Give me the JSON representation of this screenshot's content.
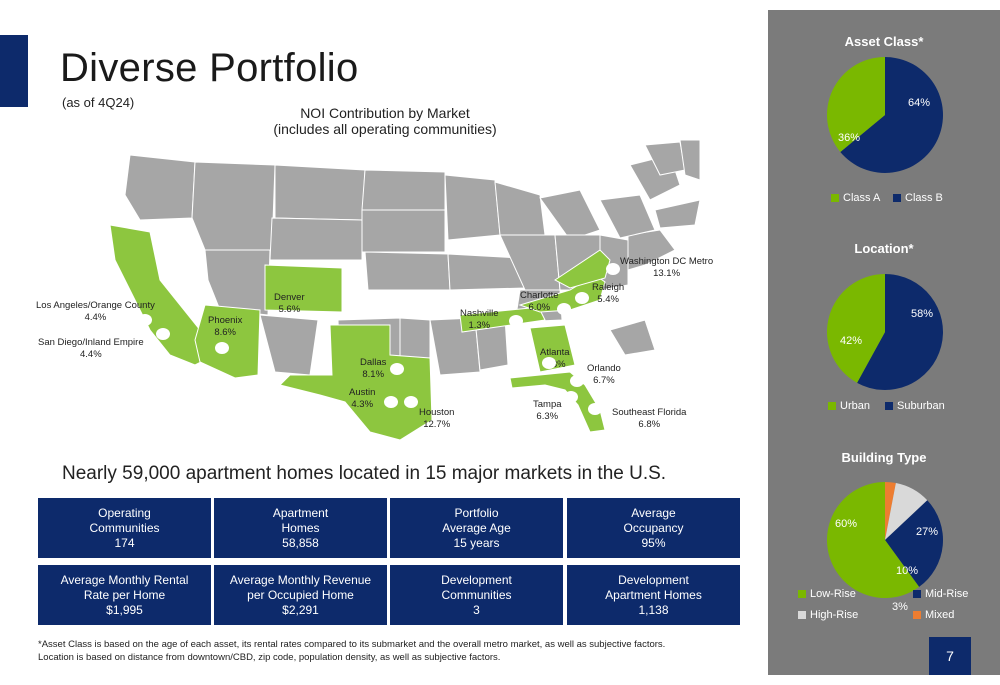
{
  "header": {
    "title": "Diverse Portfolio",
    "subtitle": "(as of 4Q24)"
  },
  "map": {
    "title_line1": "NOI Contribution by Market",
    "title_line2": "(includes all operating communities)",
    "colors": {
      "highlight": "#8dc63f",
      "base": "#a6a6a6",
      "border": "#ffffff"
    },
    "markets": [
      {
        "name": "Los Angeles/Orange County",
        "value": "4.4%"
      },
      {
        "name": "San Diego/Inland Empire",
        "value": "4.4%"
      },
      {
        "name": "Phoenix",
        "value": "8.6%"
      },
      {
        "name": "Denver",
        "value": "5.6%"
      },
      {
        "name": "Dallas",
        "value": "8.1%"
      },
      {
        "name": "Austin",
        "value": "4.3%"
      },
      {
        "name": "Houston",
        "value": "12.7%"
      },
      {
        "name": "Nashville",
        "value": "1.3%"
      },
      {
        "name": "Atlanta",
        "value": "6.3%"
      },
      {
        "name": "Charlotte",
        "value": "6.0%"
      },
      {
        "name": "Raleigh",
        "value": "5.4%"
      },
      {
        "name": "Washington DC Metro",
        "value": "13.1%"
      },
      {
        "name": "Orlando",
        "value": "6.7%"
      },
      {
        "name": "Tampa",
        "value": "6.3%"
      },
      {
        "name": "Southeast Florida",
        "value": "6.8%"
      }
    ]
  },
  "headline": "Nearly 59,000 apartment homes located in 15 major markets in the U.S.",
  "stats": [
    {
      "line1": "Operating",
      "line2": "Communities",
      "value": "174"
    },
    {
      "line1": "Apartment",
      "line2": "Homes",
      "value": "58,858"
    },
    {
      "line1": "Portfolio",
      "line2": "Average Age",
      "value": "15 years"
    },
    {
      "line1": "Average",
      "line2": "Occupancy",
      "value": "95%"
    },
    {
      "line1": "Average Monthly Rental",
      "line2": "Rate per Home",
      "value": "$1,995"
    },
    {
      "line1": "Average Monthly Revenue",
      "line2": "per Occupied Home",
      "value": "$2,291"
    },
    {
      "line1": "Development",
      "line2": "Communities",
      "value": "3"
    },
    {
      "line1": "Development",
      "line2": "Apartment Homes",
      "value": "1,138"
    }
  ],
  "footnote": {
    "line1": "*Asset Class is based on the age of each asset, its rental rates compared to its submarket and the overall metro market, as well as subjective factors.",
    "line2": "Location is based on distance from downtown/CBD, zip code, population density, as well as subjective factors."
  },
  "page_number": "7",
  "chart_data": [
    {
      "type": "pie",
      "title": "Asset Class*",
      "categories": [
        "Class A",
        "Class B"
      ],
      "values": [
        36,
        64
      ],
      "labels": [
        "36%",
        "64%"
      ],
      "colors": [
        "#7ab800",
        "#0d2a6b"
      ]
    },
    {
      "type": "pie",
      "title": "Location*",
      "categories": [
        "Urban",
        "Suburban"
      ],
      "values": [
        42,
        58
      ],
      "labels": [
        "42%",
        "58%"
      ],
      "colors": [
        "#7ab800",
        "#0d2a6b"
      ]
    },
    {
      "type": "pie",
      "title": "Building Type",
      "categories": [
        "Low-Rise",
        "Mid-Rise",
        "High-Rise",
        "Mixed"
      ],
      "values": [
        60,
        27,
        10,
        3
      ],
      "labels": [
        "60%",
        "27%",
        "10%",
        "3%"
      ],
      "colors": [
        "#7ab800",
        "#0d2a6b",
        "#d9d9d9",
        "#ed7d31"
      ]
    }
  ]
}
